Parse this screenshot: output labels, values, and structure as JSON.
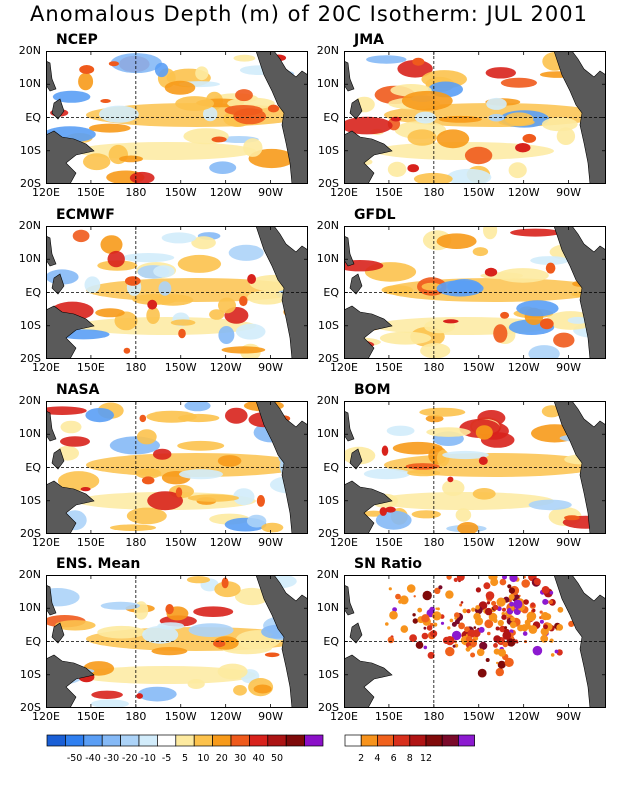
{
  "title": "Anomalous Depth (m) of 20C Isotherm: JUL 2001",
  "lat_labels": [
    "20N",
    "10N",
    "EQ",
    "10S",
    "20S"
  ],
  "lon_labels": [
    "120E",
    "150E",
    "180",
    "150W",
    "120W",
    "90W"
  ],
  "panels": [
    {
      "id": "ncep",
      "title": "NCEP",
      "kind": "anomaly"
    },
    {
      "id": "jma",
      "title": "JMA",
      "kind": "anomaly"
    },
    {
      "id": "ecmwf",
      "title": "ECMWF",
      "kind": "anomaly"
    },
    {
      "id": "gfdl",
      "title": "GFDL",
      "kind": "anomaly"
    },
    {
      "id": "nasa",
      "title": "NASA",
      "kind": "anomaly"
    },
    {
      "id": "bom",
      "title": "BOM",
      "kind": "anomaly"
    },
    {
      "id": "ens",
      "title": "ENS. Mean",
      "kind": "anomaly"
    },
    {
      "id": "sn",
      "title": "SN Ratio",
      "kind": "ratio"
    }
  ],
  "anomaly_colorbar": {
    "colors": [
      "#1a5fd6",
      "#2f7ff0",
      "#5a9ef5",
      "#85b9f6",
      "#acd3f8",
      "#d2ecfb",
      "#ffffff",
      "#fdeaa0",
      "#fcc24c",
      "#f79a1a",
      "#ef5a1c",
      "#d8221c",
      "#ac1414",
      "#7e0a0a",
      "#8b10c8"
    ],
    "ticks": [
      "-50",
      "-40",
      "-30",
      "-20",
      "-10",
      "-5",
      "5",
      "10",
      "20",
      "30",
      "40",
      "50"
    ]
  },
  "ratio_colorbar": {
    "colors": [
      "#ffffff",
      "#f7931c",
      "#f0611c",
      "#d8301c",
      "#b01414",
      "#800a0a",
      "#7a0a2a",
      "#8c1ad0"
    ],
    "ticks": [
      "2",
      "4",
      "6",
      "8",
      "12"
    ]
  }
}
